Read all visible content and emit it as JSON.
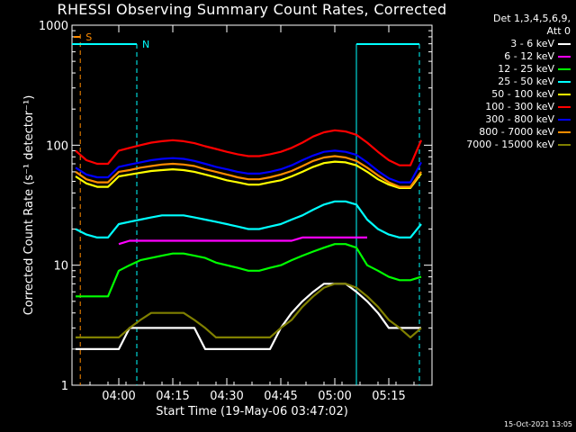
{
  "chart_data": {
    "type": "line",
    "title": "RHESSI Observing Summary Count Rates, Corrected",
    "xlabel": "Start Time (19-May-06 03:47:02)",
    "ylabel": "Corrected Count Rate (s⁻¹ detector⁻¹)",
    "yscale": "log",
    "ylim": [
      1,
      1000
    ],
    "xlim_minutes": [
      0,
      100
    ],
    "y_ticks": [
      "1",
      "10",
      "100",
      "1000"
    ],
    "x_ticks": [
      {
        "t": 13,
        "label": "04:00"
      },
      {
        "t": 28,
        "label": "04:15"
      },
      {
        "t": 43,
        "label": "04:30"
      },
      {
        "t": 58,
        "label": "04:45"
      },
      {
        "t": 73,
        "label": "05:00"
      },
      {
        "t": 88,
        "label": "05:15"
      }
    ],
    "legend_header": [
      "Det 1,3,4,5,6,9,",
      "Att 0"
    ],
    "legend_placement": "top-right",
    "series": [
      {
        "name": "3 - 6 keV",
        "color": "#ffffff",
        "x": [
          1,
          4,
          7,
          10,
          13,
          16,
          19,
          22,
          25,
          28,
          31,
          34,
          37,
          40,
          43,
          46,
          49,
          52,
          55,
          58,
          61,
          64,
          67,
          70,
          73,
          76,
          79,
          82,
          85,
          88,
          91,
          94,
          97
        ],
        "y": [
          2,
          2,
          2,
          2,
          2,
          3,
          3,
          3,
          3,
          3,
          3,
          3,
          2,
          2,
          2,
          2,
          2,
          2,
          2,
          3,
          4,
          5,
          6,
          7,
          7,
          7,
          6,
          5,
          4,
          3,
          3,
          3,
          3
        ]
      },
      {
        "name": "6 - 12 keV",
        "color": "#ff00ff",
        "x": [
          13,
          16,
          19,
          22,
          25,
          28,
          31,
          34,
          37,
          40,
          43,
          46,
          49,
          52,
          55,
          58,
          61,
          64,
          67,
          70,
          73,
          76,
          79,
          82
        ],
        "y": [
          15,
          16,
          16,
          16,
          16,
          16,
          16,
          16,
          16,
          16,
          16,
          16,
          16,
          16,
          16,
          16,
          16,
          17,
          17,
          17,
          17,
          17,
          17,
          17
        ]
      },
      {
        "name": "12 - 25 keV",
        "color": "#00ff00",
        "x": [
          1,
          4,
          7,
          10,
          13,
          16,
          19,
          22,
          25,
          28,
          31,
          34,
          37,
          40,
          43,
          46,
          49,
          52,
          55,
          58,
          61,
          64,
          67,
          70,
          73,
          76,
          79,
          82,
          85,
          88,
          91,
          94,
          97
        ],
        "y": [
          5.5,
          5.5,
          5.5,
          5.5,
          9,
          10,
          11,
          11.5,
          12,
          12.5,
          12.5,
          12,
          11.5,
          10.5,
          10,
          9.5,
          9,
          9,
          9.5,
          10,
          11,
          12,
          13,
          14,
          15,
          15,
          14,
          10,
          9,
          8,
          7.5,
          7.5,
          8
        ]
      },
      {
        "name": "25 - 50 keV",
        "color": "#00ffff",
        "x": [
          1,
          4,
          7,
          10,
          13,
          16,
          19,
          22,
          25,
          28,
          31,
          34,
          37,
          40,
          43,
          46,
          49,
          52,
          55,
          58,
          61,
          64,
          67,
          70,
          73,
          76,
          79,
          82,
          85,
          88,
          91,
          94,
          97
        ],
        "y": [
          20,
          18,
          17,
          17,
          22,
          23,
          24,
          25,
          26,
          26,
          26,
          25,
          24,
          23,
          22,
          21,
          20,
          20,
          21,
          22,
          24,
          26,
          29,
          32,
          34,
          34,
          32,
          24,
          20,
          18,
          17,
          17,
          22
        ]
      },
      {
        "name": "50 - 100 keV",
        "color": "#ffff00",
        "x": [
          1,
          4,
          7,
          10,
          13,
          16,
          19,
          22,
          25,
          28,
          31,
          34,
          37,
          40,
          43,
          46,
          49,
          52,
          55,
          58,
          61,
          64,
          67,
          70,
          73,
          76,
          79,
          82,
          85,
          88,
          91,
          94,
          97
        ],
        "y": [
          55,
          48,
          45,
          45,
          55,
          57,
          59,
          61,
          62,
          63,
          62,
          60,
          57,
          54,
          51,
          49,
          47,
          47,
          49,
          51,
          55,
          60,
          66,
          71,
          73,
          72,
          68,
          60,
          52,
          47,
          44,
          44,
          58
        ]
      },
      {
        "name": "100 - 300 keV",
        "color": "#ff0000",
        "x": [
          1,
          4,
          7,
          10,
          13,
          16,
          19,
          22,
          25,
          28,
          31,
          34,
          37,
          40,
          43,
          46,
          49,
          52,
          55,
          58,
          61,
          64,
          67,
          70,
          73,
          76,
          79,
          82,
          85,
          88,
          91,
          94,
          97
        ],
        "y": [
          90,
          75,
          70,
          70,
          90,
          95,
          100,
          105,
          108,
          110,
          108,
          104,
          98,
          93,
          88,
          84,
          81,
          81,
          84,
          88,
          95,
          105,
          118,
          128,
          133,
          130,
          122,
          105,
          88,
          75,
          68,
          68,
          110
        ]
      },
      {
        "name": "300 - 800 keV",
        "color": "#0000ff",
        "x": [
          1,
          4,
          7,
          10,
          13,
          16,
          19,
          22,
          25,
          28,
          31,
          34,
          37,
          40,
          43,
          46,
          49,
          52,
          55,
          58,
          61,
          64,
          67,
          70,
          73,
          76,
          79,
          82,
          85,
          88,
          91,
          94,
          97
        ],
        "y": [
          65,
          57,
          54,
          54,
          66,
          69,
          72,
          75,
          77,
          78,
          77,
          74,
          70,
          66,
          63,
          60,
          58,
          58,
          60,
          63,
          68,
          75,
          82,
          88,
          90,
          88,
          83,
          72,
          61,
          53,
          49,
          49,
          72
        ]
      },
      {
        "name": "800 - 7000 keV",
        "color": "#ff8c00",
        "x": [
          1,
          4,
          7,
          10,
          13,
          16,
          19,
          22,
          25,
          28,
          31,
          34,
          37,
          40,
          43,
          46,
          49,
          52,
          55,
          58,
          61,
          64,
          67,
          70,
          73,
          76,
          79,
          82,
          85,
          88,
          91,
          94,
          97
        ],
        "y": [
          60,
          52,
          49,
          49,
          60,
          62,
          65,
          67,
          69,
          70,
          69,
          67,
          63,
          60,
          57,
          54,
          52,
          52,
          54,
          57,
          61,
          67,
          74,
          79,
          81,
          79,
          74,
          65,
          56,
          49,
          45,
          45,
          60
        ]
      },
      {
        "name": "7000 - 15000 keV",
        "color": "#808000",
        "x": [
          1,
          4,
          7,
          10,
          13,
          16,
          19,
          22,
          25,
          28,
          31,
          34,
          37,
          40,
          43,
          46,
          49,
          52,
          55,
          58,
          61,
          64,
          67,
          70,
          73,
          76,
          79,
          82,
          85,
          88,
          91,
          94,
          97
        ],
        "y": [
          2.5,
          2.5,
          2.5,
          2.5,
          2.5,
          3,
          3.5,
          4,
          4,
          4,
          4,
          3.5,
          3,
          2.5,
          2.5,
          2.5,
          2.5,
          2.5,
          2.5,
          3,
          3.5,
          4.5,
          5.5,
          6.5,
          7,
          7,
          6.5,
          5.5,
          4.5,
          3.5,
          3,
          2.5,
          3
        ]
      }
    ],
    "annotations": {
      "s_label": "S",
      "n_label": "N"
    }
  },
  "timestamp": "15-Oct-2021 13:05"
}
